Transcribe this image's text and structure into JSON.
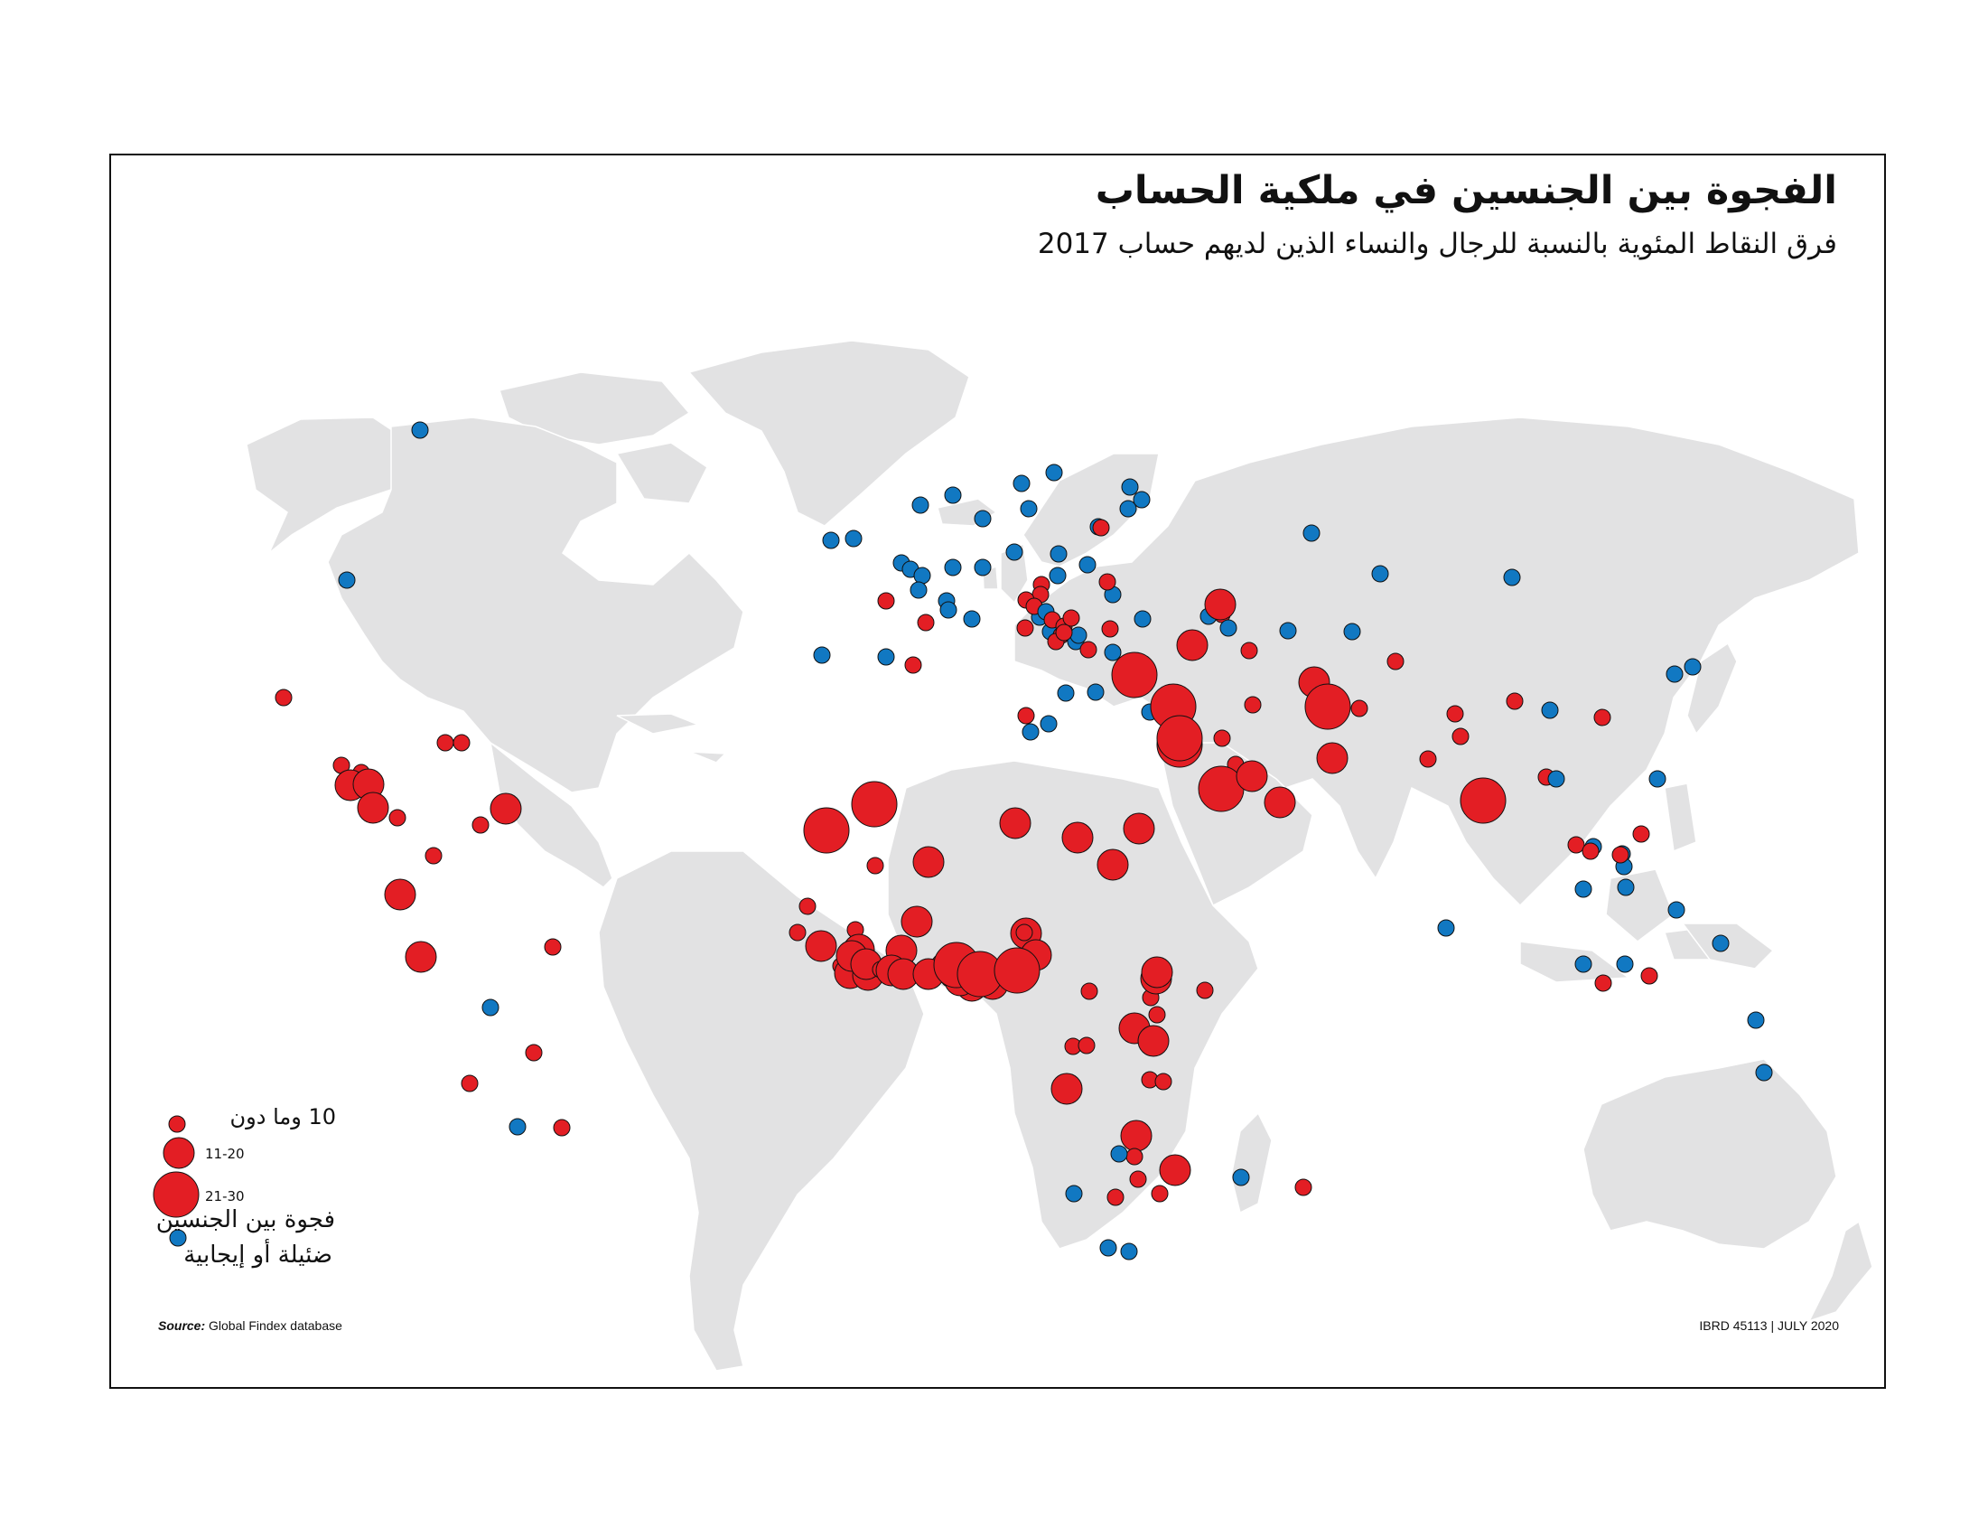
{
  "title": "الفجوة بين الجنسين في ملكية الحساب",
  "subtitle": "فرق النقاط المئوية بالنسبة للرجال والنساء الذين لديهم حساب 2017",
  "colors": {
    "gap": "#e31e24",
    "positive": "#1178c2",
    "land": "#e2e2e3",
    "outline": "#111111"
  },
  "legend": {
    "small_label": "10   وما دون",
    "medium_label": "11-20",
    "large_label": "21-30",
    "blue_label_line1": "فجوة بين الجنسين",
    "blue_label_line2": "ضئيلة أو إيجابية"
  },
  "source_label": "Source:",
  "source_text": "Global Findex database",
  "map_id": "IBRD 45113",
  "date": "JULY 2020"
}
